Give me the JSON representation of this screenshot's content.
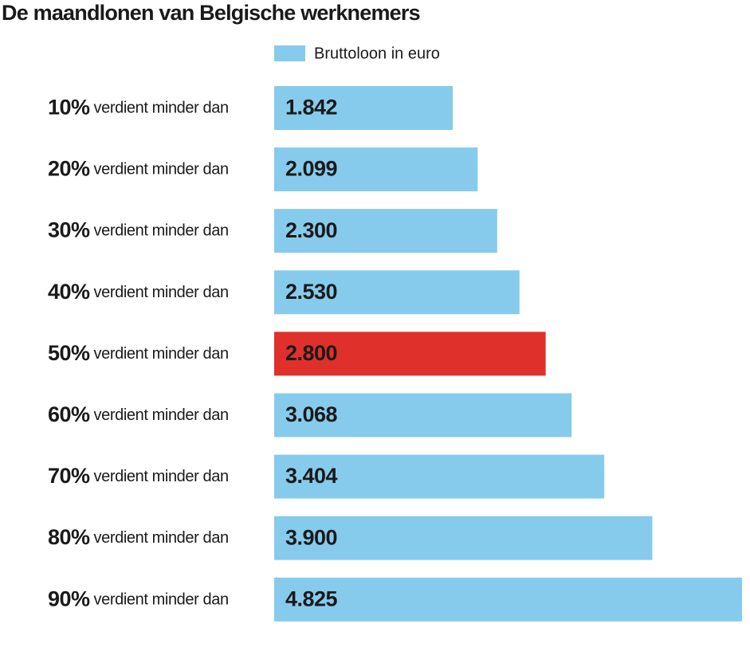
{
  "chart_data": {
    "type": "hbar",
    "title": "De maandlonen van Belgische werknemers",
    "categories": [
      "10%",
      "20%",
      "30%",
      "40%",
      "50%",
      "60%",
      "70%",
      "80%",
      "90%"
    ],
    "category_suffix": "verdient minder dan",
    "series": [
      {
        "name": "Bruttoloon in euro",
        "color": "#87cbec",
        "values": [
          1842,
          2099,
          2300,
          2530,
          2800,
          3068,
          3404,
          3900,
          4825
        ],
        "value_labels": [
          "1.842",
          "2.099",
          "2.300",
          "2.530",
          "2.800",
          "3.068",
          "3.404",
          "3.900",
          "4.825"
        ],
        "colors": [
          "#87cbec",
          "#87cbec",
          "#87cbec",
          "#87cbec",
          "#e0302b",
          "#87cbec",
          "#87cbec",
          "#87cbec",
          "#87cbec"
        ]
      }
    ],
    "xlim": [
      0,
      4825
    ]
  }
}
